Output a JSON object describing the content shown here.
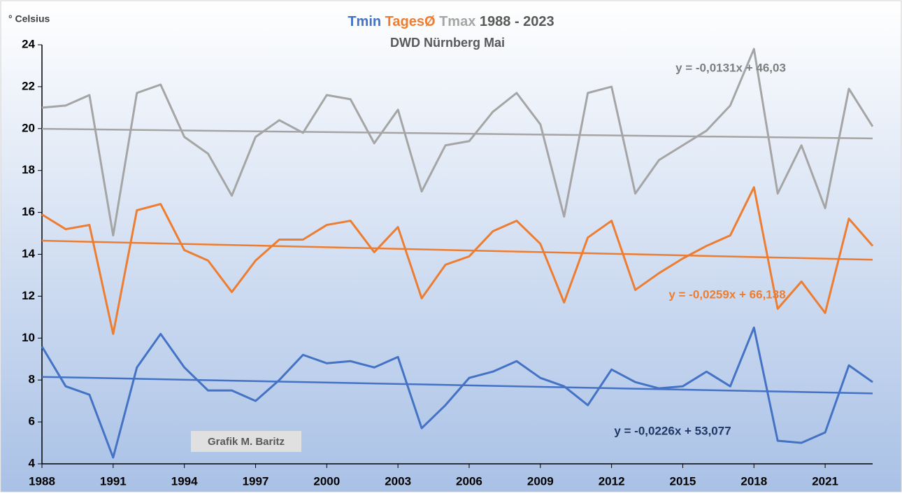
{
  "chart_data": {
    "type": "line",
    "title": "1988 - 2023",
    "subtitle": "DWD Nürnberg Mai",
    "ylabel": "° Celsius",
    "annotation": "Grafik M. Baritz",
    "x": [
      1988,
      1989,
      1990,
      1991,
      1992,
      1993,
      1994,
      1995,
      1996,
      1997,
      1998,
      1999,
      2000,
      2001,
      2002,
      2003,
      2004,
      2005,
      2006,
      2007,
      2008,
      2009,
      2010,
      2011,
      2012,
      2013,
      2014,
      2015,
      2016,
      2017,
      2018,
      2019,
      2020,
      2021,
      2022,
      2023
    ],
    "xlim": [
      1988,
      2023
    ],
    "xticks": [
      1988,
      1991,
      1994,
      1997,
      2000,
      2003,
      2006,
      2009,
      2012,
      2015,
      2018,
      2021
    ],
    "ylim": [
      4,
      24
    ],
    "yticks": [
      4,
      6,
      8,
      10,
      12,
      14,
      16,
      18,
      20,
      22,
      24
    ],
    "series": [
      {
        "name": "Tmin",
        "color": "#4472c4",
        "values": [
          9.6,
          7.7,
          7.3,
          4.3,
          8.6,
          10.2,
          8.6,
          7.5,
          7.5,
          7.0,
          8.0,
          9.2,
          8.8,
          8.9,
          8.6,
          9.1,
          5.7,
          6.8,
          8.1,
          8.4,
          8.9,
          8.1,
          7.7,
          6.8,
          8.5,
          7.9,
          7.6,
          7.7,
          8.4,
          7.7,
          10.5,
          5.1,
          5.0,
          5.5,
          8.7,
          7.9
        ]
      },
      {
        "name": "TagesØ",
        "color": "#ed7d31",
        "values": [
          15.9,
          15.2,
          15.4,
          10.2,
          16.1,
          16.4,
          14.2,
          13.7,
          12.2,
          13.7,
          14.7,
          14.7,
          15.4,
          15.6,
          14.1,
          15.3,
          11.9,
          13.5,
          13.9,
          15.1,
          15.6,
          14.5,
          11.7,
          14.8,
          15.6,
          12.3,
          13.1,
          13.8,
          14.4,
          14.9,
          17.2,
          11.4,
          12.7,
          11.2,
          15.7,
          14.4
        ]
      },
      {
        "name": "Tmax",
        "color": "#a5a5a5",
        "values": [
          21.0,
          21.1,
          21.6,
          14.9,
          21.7,
          22.1,
          19.6,
          18.8,
          16.8,
          19.6,
          20.4,
          19.8,
          21.6,
          21.4,
          19.3,
          20.9,
          17.0,
          19.2,
          19.4,
          20.8,
          21.7,
          20.2,
          15.8,
          21.7,
          22.0,
          16.9,
          18.5,
          19.2,
          19.9,
          21.1,
          23.8,
          16.9,
          19.2,
          16.2,
          21.9,
          20.1
        ]
      }
    ],
    "trendlines": [
      {
        "label": "y = -0,0226x + 53,077",
        "color": "#4472c4",
        "label_color": "#1f3864",
        "x": [
          1988,
          2023
        ],
        "values": [
          8.15,
          7.36
        ]
      },
      {
        "label": "y = -0,0259x + 66,138",
        "color": "#ed7d31",
        "label_color": "#ed7d31",
        "x": [
          1988,
          2023
        ],
        "values": [
          14.65,
          13.74
        ]
      },
      {
        "label": "y = -0,0131x + 46,03",
        "color": "#a5a5a5",
        "label_color": "#7f7f7f",
        "x": [
          1988,
          2023
        ],
        "values": [
          19.99,
          19.53
        ]
      }
    ]
  }
}
